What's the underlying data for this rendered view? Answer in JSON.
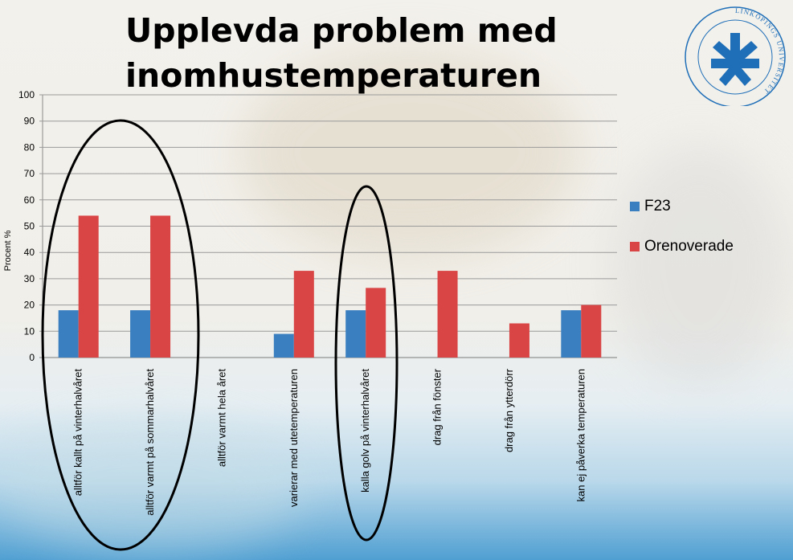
{
  "slide": {
    "title": "Upplevda problem med inomhustemperaturen",
    "logo_text": "LINKÖPINGS UNIVERSITET"
  },
  "colors": {
    "series1": "#3a7fc0",
    "series2": "#d94444",
    "logo": "#1f6fb8"
  },
  "chart_data": {
    "type": "bar",
    "ylabel": "Procent %",
    "xlabel": "",
    "ylim": [
      0,
      100
    ],
    "yticks": [
      0,
      10,
      20,
      30,
      40,
      50,
      60,
      70,
      80,
      90,
      100
    ],
    "grid": true,
    "legend_position": "right",
    "categories": [
      "alltför kallt på vinterhalvåret",
      "alltför varmt på sommarhalvåret",
      "alltför varmt hela året",
      "varierar med utetemperaturen",
      "kalla golv på vinterhalvåret",
      "drag från fönster",
      "drag från ytterdörr",
      "kan ej påverka temperaturen"
    ],
    "series": [
      {
        "name": "F23",
        "values": [
          18,
          18,
          0,
          9,
          18,
          0,
          0,
          18
        ]
      },
      {
        "name": "Orenoverade",
        "values": [
          54,
          54,
          0,
          33,
          26.5,
          33,
          13,
          20
        ]
      }
    ],
    "annotations": [
      "ellipse around categories 1-2",
      "ellipse around category 5"
    ]
  }
}
